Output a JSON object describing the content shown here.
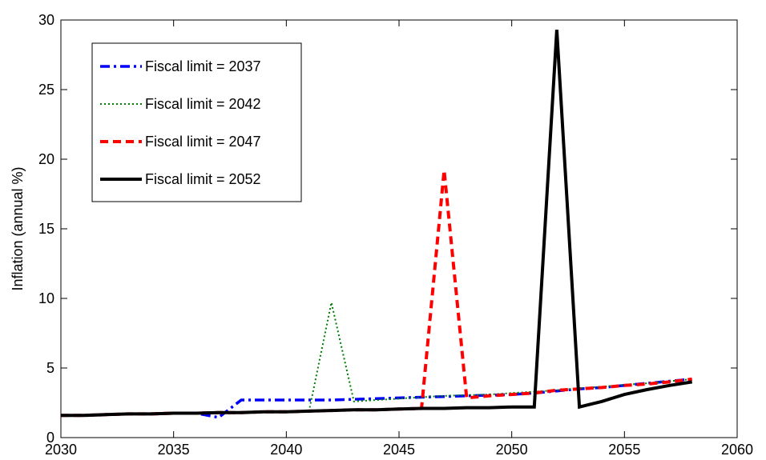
{
  "chart_data": {
    "type": "line",
    "title": "",
    "xlabel": "",
    "ylabel": "Inflation (annual %)",
    "xlim": [
      2030,
      2060
    ],
    "ylim": [
      0,
      30
    ],
    "xticks": [
      2030,
      2035,
      2040,
      2045,
      2050,
      2055,
      2060
    ],
    "yticks": [
      0,
      5,
      10,
      15,
      20,
      25,
      30
    ],
    "grid": false,
    "legend_position": "top-left",
    "series": [
      {
        "name": "Fiscal limit = 2037",
        "color": "#0000ff",
        "dash": "dash-dot",
        "x": [
          2030,
          2031,
          2032,
          2033,
          2034,
          2035,
          2036,
          2037,
          2038,
          2039,
          2040,
          2041,
          2042,
          2043,
          2044,
          2045,
          2046,
          2047,
          2048,
          2049,
          2050,
          2051,
          2052,
          2053,
          2054,
          2055,
          2056,
          2057,
          2058
        ],
        "y": [
          1.6,
          1.6,
          1.65,
          1.7,
          1.7,
          1.75,
          1.75,
          1.45,
          2.7,
          2.7,
          2.7,
          2.7,
          2.7,
          2.75,
          2.8,
          2.85,
          2.9,
          2.95,
          3.0,
          3.05,
          3.1,
          3.2,
          3.35,
          3.5,
          3.6,
          3.75,
          3.9,
          4.05,
          4.2
        ]
      },
      {
        "name": "Fiscal limit = 2042",
        "color": "#008000",
        "dash": "dotted",
        "x": [
          2030,
          2031,
          2032,
          2033,
          2034,
          2035,
          2036,
          2037,
          2038,
          2039,
          2040,
          2041,
          2042,
          2043,
          2044,
          2045,
          2046,
          2047,
          2048,
          2049,
          2050,
          2051,
          2052,
          2053,
          2054,
          2055,
          2056,
          2057,
          2058
        ],
        "y": [
          1.6,
          1.6,
          1.65,
          1.7,
          1.7,
          1.75,
          1.75,
          1.8,
          1.8,
          1.85,
          1.85,
          1.85,
          9.7,
          2.6,
          2.7,
          2.8,
          2.9,
          3.0,
          3.05,
          3.1,
          3.2,
          3.3,
          3.4,
          3.55,
          3.65,
          3.8,
          3.9,
          4.05,
          4.2
        ]
      },
      {
        "name": "Fiscal limit = 2047",
        "color": "#ff0000",
        "dash": "dashed",
        "x": [
          2030,
          2031,
          2032,
          2033,
          2034,
          2035,
          2036,
          2037,
          2038,
          2039,
          2040,
          2041,
          2042,
          2043,
          2044,
          2045,
          2046,
          2047,
          2048,
          2049,
          2050,
          2051,
          2052,
          2053,
          2054,
          2055,
          2056,
          2057,
          2058
        ],
        "y": [
          1.6,
          1.6,
          1.65,
          1.7,
          1.7,
          1.75,
          1.75,
          1.8,
          1.8,
          1.85,
          1.85,
          1.9,
          1.95,
          2.0,
          2.0,
          2.05,
          2.1,
          19.2,
          2.85,
          3.0,
          3.1,
          3.2,
          3.4,
          3.5,
          3.6,
          3.75,
          3.85,
          4.0,
          4.2
        ]
      },
      {
        "name": "Fiscal limit = 2052",
        "color": "#000000",
        "dash": "solid",
        "x": [
          2030,
          2031,
          2032,
          2033,
          2034,
          2035,
          2036,
          2037,
          2038,
          2039,
          2040,
          2041,
          2042,
          2043,
          2044,
          2045,
          2046,
          2047,
          2048,
          2049,
          2050,
          2051,
          2052,
          2053,
          2054,
          2055,
          2056,
          2057,
          2058
        ],
        "y": [
          1.6,
          1.6,
          1.65,
          1.7,
          1.7,
          1.75,
          1.75,
          1.8,
          1.8,
          1.85,
          1.85,
          1.9,
          1.95,
          2.0,
          2.0,
          2.05,
          2.1,
          2.1,
          2.15,
          2.15,
          2.2,
          2.2,
          29.3,
          2.2,
          2.6,
          3.1,
          3.45,
          3.75,
          4.0
        ]
      }
    ]
  }
}
